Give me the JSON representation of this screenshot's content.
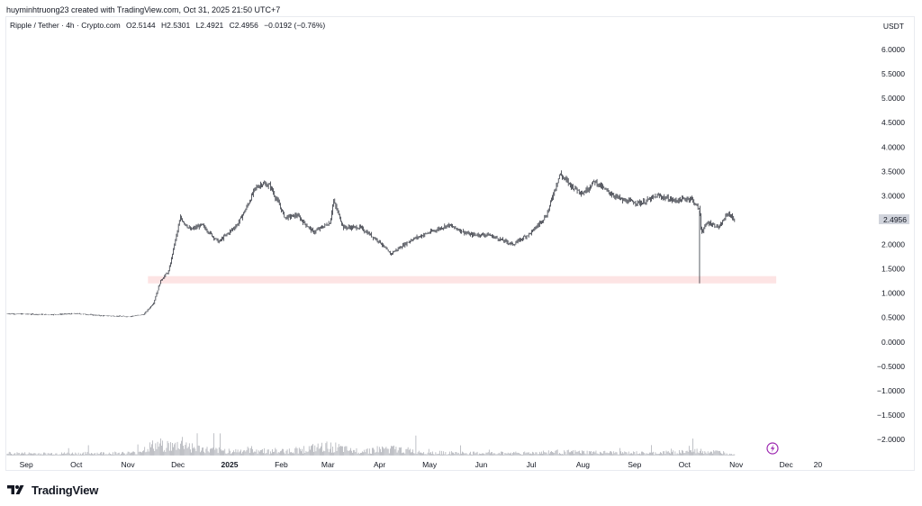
{
  "header": {
    "attribution": "huyminhtruong23 created with TradingView.com, Oct 31, 2025 21:50 UTC+7"
  },
  "legend": {
    "symbol": "Ripple / Tether · 4h · Crypto.com",
    "open": "O2.5144",
    "high": "H2.5301",
    "low": "L2.4921",
    "close": "C2.4956",
    "change": "−0.0192 (−0.76%)"
  },
  "currency": "USDT",
  "last_price_label": "2.4956",
  "footer": {
    "logo_text": "TradingView"
  },
  "colors": {
    "candle": "#131722",
    "volume": "#9598a1",
    "highlight_zone": "#fde4e4",
    "price_label_bg": "#d1d4dc",
    "accent_icon": "#9c27b0"
  },
  "icons": {
    "logo": "tradingview-logo-icon",
    "lightning": "lightning-icon"
  },
  "chart_data": {
    "type": "line",
    "title": "",
    "xlabel": "",
    "ylabel": "",
    "x_tick_labels": [
      "Sep",
      "Oct",
      "Nov",
      "Dec",
      "2025",
      "Feb",
      "Mar",
      "Apr",
      "May",
      "Jun",
      "Jul",
      "Aug",
      "Sep",
      "Oct",
      "Nov",
      "Dec",
      "20"
    ],
    "y_tick_labels": [
      "6.0000",
      "5.5000",
      "5.0000",
      "4.5000",
      "4.0000",
      "3.5000",
      "3.0000",
      "2.5000",
      "2.0000",
      "1.5000",
      "1.0000",
      "0.5000",
      "0.0000",
      "−0.5000",
      "−1.0000",
      "−1.5000",
      "−2.0000"
    ],
    "y_ticks": [
      6.0,
      5.5,
      5.0,
      4.5,
      4.0,
      3.5,
      3.0,
      2.5,
      2.0,
      1.5,
      1.0,
      0.5,
      0.0,
      -0.5,
      -1.0,
      -1.5,
      -2.0
    ],
    "ylim": [
      -2.25,
      6.4
    ],
    "x_range": [
      "2024-08-20",
      "2026-01-25"
    ],
    "grid": false,
    "highlight_zone": {
      "y_from": 1.2,
      "y_to": 1.35,
      "x_from": "2024-11-13",
      "x_to": "2025-11-25"
    },
    "series": [
      {
        "type": "candlestick-approx",
        "x": [
          "2024-08-20",
          "2024-09-01",
          "2024-09-15",
          "2024-10-01",
          "2024-10-15",
          "2024-11-01",
          "2024-11-10",
          "2024-11-16",
          "2024-11-20",
          "2024-11-25",
          "2024-12-02",
          "2024-12-08",
          "2024-12-15",
          "2024-12-25",
          "2025-01-05",
          "2025-01-10",
          "2025-01-16",
          "2025-01-20",
          "2025-01-25",
          "2025-02-03",
          "2025-02-10",
          "2025-02-20",
          "2025-03-02",
          "2025-03-04",
          "2025-03-10",
          "2025-03-20",
          "2025-04-01",
          "2025-04-07",
          "2025-04-20",
          "2025-05-01",
          "2025-05-12",
          "2025-05-25",
          "2025-06-05",
          "2025-06-20",
          "2025-07-01",
          "2025-07-10",
          "2025-07-18",
          "2025-07-25",
          "2025-08-01",
          "2025-08-08",
          "2025-08-15",
          "2025-08-25",
          "2025-09-05",
          "2025-09-15",
          "2025-09-25",
          "2025-10-05",
          "2025-10-10",
          "2025-10-11",
          "2025-10-15",
          "2025-10-22",
          "2025-10-27",
          "2025-10-31"
        ],
        "values": [
          0.58,
          0.57,
          0.56,
          0.58,
          0.54,
          0.52,
          0.56,
          0.8,
          1.25,
          1.45,
          2.55,
          2.3,
          2.4,
          2.05,
          2.4,
          2.7,
          3.15,
          3.25,
          3.2,
          2.55,
          2.6,
          2.25,
          2.45,
          2.9,
          2.35,
          2.35,
          2.05,
          1.8,
          2.1,
          2.25,
          2.4,
          2.2,
          2.2,
          2.0,
          2.25,
          2.6,
          3.45,
          3.2,
          3.05,
          3.3,
          3.1,
          2.9,
          2.85,
          3.0,
          2.9,
          2.95,
          2.7,
          2.25,
          2.45,
          2.35,
          2.65,
          2.5
        ]
      },
      {
        "name": "",
        "type": "volume",
        "x": [
          "2024-08-20",
          "2024-09-15",
          "2024-10-10",
          "2024-11-05",
          "2024-11-14",
          "2024-11-22",
          "2024-11-28",
          "2024-12-03",
          "2024-12-10",
          "2024-12-20",
          "2025-01-05",
          "2025-01-15",
          "2025-01-28",
          "2025-02-08",
          "2025-03-03",
          "2025-03-15",
          "2025-04-07",
          "2025-05-01",
          "2025-06-01",
          "2025-07-01",
          "2025-07-15",
          "2025-08-10",
          "2025-09-10",
          "2025-10-10",
          "2025-10-31"
        ],
        "values": [
          0.3,
          0.25,
          0.3,
          0.35,
          1.2,
          1.5,
          1.1,
          1.8,
          1.0,
          0.7,
          0.6,
          0.8,
          0.5,
          0.7,
          1.2,
          0.6,
          0.9,
          0.4,
          0.3,
          0.35,
          0.5,
          0.4,
          0.3,
          0.6,
          0.3
        ]
      }
    ]
  }
}
